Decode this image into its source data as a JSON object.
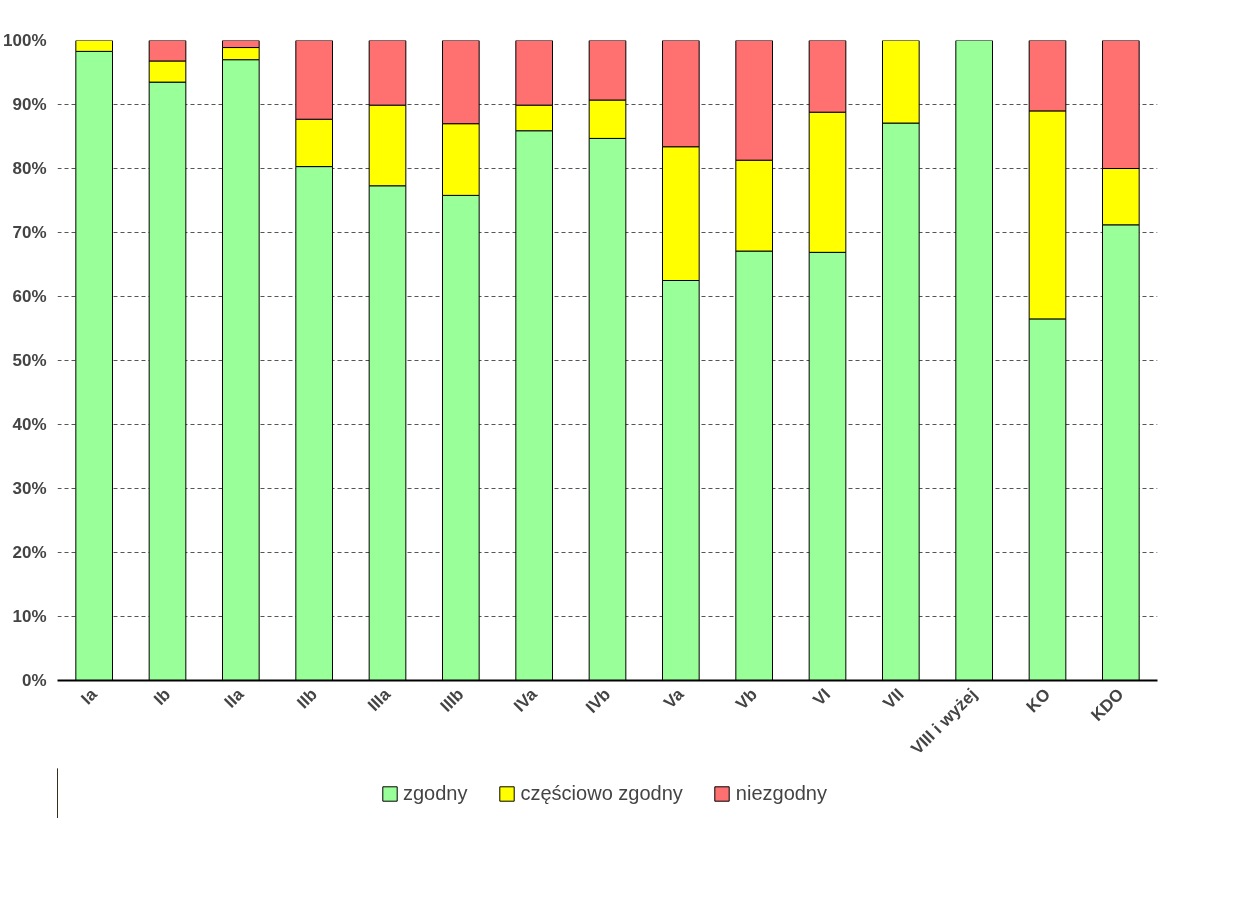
{
  "chart_data": {
    "type": "bar",
    "stacked": true,
    "categories": [
      "Ia",
      "Ib",
      "IIa",
      "IIb",
      "IIIa",
      "IIIb",
      "IVa",
      "IVb",
      "Va",
      "Vb",
      "VI",
      "VII",
      "VIII i wyżej",
      "KO",
      "KDO"
    ],
    "series": [
      {
        "name": "zgodny",
        "color": "#99ff99",
        "values": [
          98.3,
          93.5,
          97.0,
          80.3,
          77.3,
          75.8,
          85.9,
          84.7,
          62.5,
          67.1,
          66.9,
          87.1,
          100,
          56.5,
          71.2
        ]
      },
      {
        "name": "częściowo zgodny",
        "color": "#ffff00",
        "values": [
          1.7,
          3.3,
          1.9,
          7.4,
          12.6,
          11.2,
          4.0,
          6.0,
          20.9,
          14.2,
          21.9,
          12.9,
          0,
          32.5,
          8.8
        ]
      },
      {
        "name": "niezgodny",
        "color": "#ff7070",
        "values": [
          0,
          3.2,
          1.1,
          12.3,
          10.1,
          13.0,
          10.1,
          9.3,
          16.6,
          18.7,
          11.2,
          0,
          0,
          11.0,
          20.0
        ]
      }
    ],
    "ylim": [
      0,
      100
    ],
    "yticks": [
      {
        "value": 0,
        "label": "0%"
      },
      {
        "value": 10,
        "label": "10%"
      },
      {
        "value": 20,
        "label": "20%"
      },
      {
        "value": 30,
        "label": "30%"
      },
      {
        "value": 40,
        "label": "40%"
      },
      {
        "value": 50,
        "label": "50%"
      },
      {
        "value": 60,
        "label": "60%"
      },
      {
        "value": 70,
        "label": "70%"
      },
      {
        "value": 80,
        "label": "80%"
      },
      {
        "value": 90,
        "label": "90%"
      },
      {
        "value": 100,
        "label": "100%"
      }
    ],
    "grid": "y",
    "legend": "bottom"
  }
}
